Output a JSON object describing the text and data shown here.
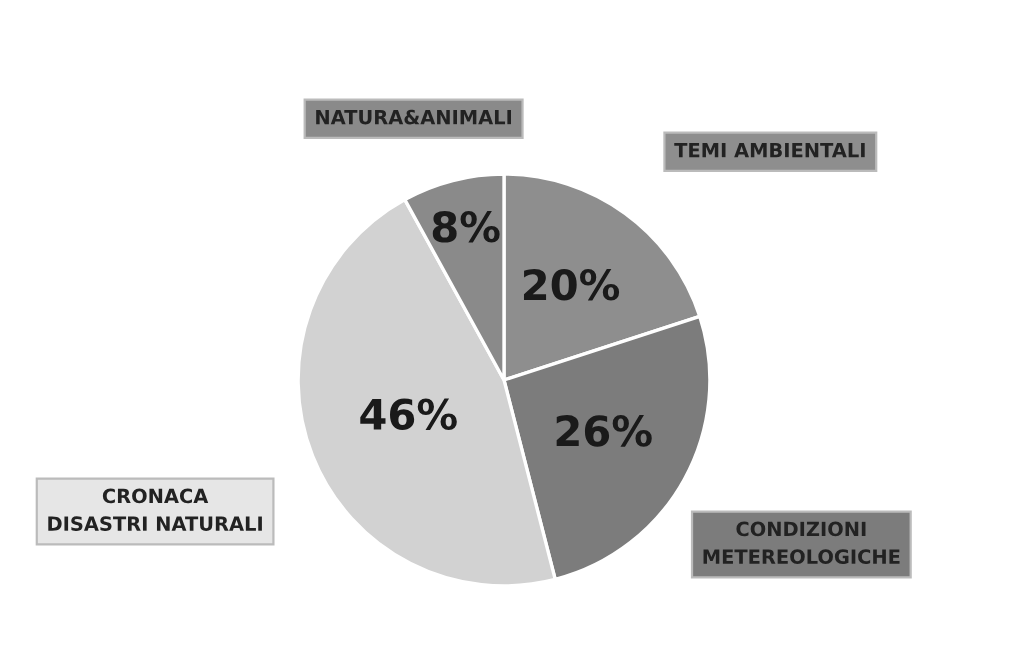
{
  "chart_data": {
    "type": "pie",
    "categories": [
      "TEMI AMBIENTALI",
      "CONDIZIONI\nMETEREOLOGICHE",
      "CRONACA\nDISASTRI NATURALI",
      "NATURA&ANIMALI"
    ],
    "values": [
      20,
      26,
      46,
      8
    ],
    "value_labels": [
      "20%",
      "26%",
      "46%",
      "8%"
    ],
    "colors": [
      "#8e8e8e",
      "#7c7c7c",
      "#d2d2d2",
      "#8a8a8a"
    ],
    "legend": false
  }
}
